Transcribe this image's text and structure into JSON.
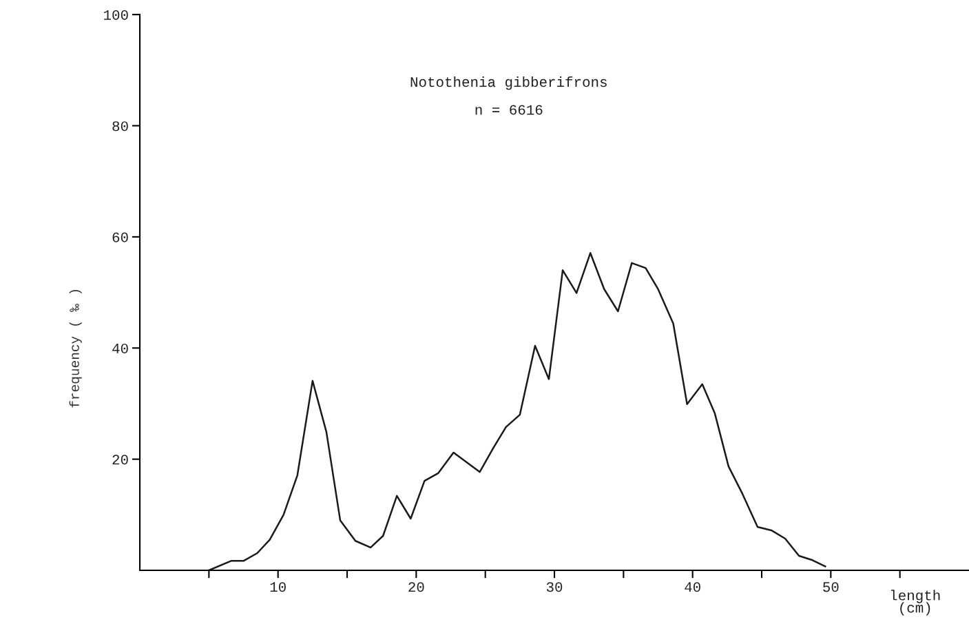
{
  "chart_data": {
    "type": "line",
    "xlabel": "length\n(cm)",
    "ylabel": "frequency ( ‰ )",
    "annotations": [
      "Notothenia gibberifrons",
      "n = 6616"
    ],
    "xlim": [
      0,
      60
    ],
    "ylim": [
      0,
      100
    ],
    "xticks": [
      {
        "value": 5,
        "label": null
      },
      10,
      {
        "value": 15,
        "label": null
      },
      20,
      {
        "value": 25,
        "label": null
      },
      30,
      {
        "value": 35,
        "label": null
      },
      40,
      {
        "value": 45,
        "label": null
      },
      50,
      {
        "value": 55,
        "label": null
      }
    ],
    "yticks": [
      20,
      40,
      60,
      80,
      100
    ],
    "grid": false,
    "legend": false,
    "marker": "none",
    "line_style": "solid",
    "series": [
      {
        "color": "#1a1a1a",
        "x": [
          5.0,
          6.6,
          7.5,
          8.5,
          9.4,
          10.4,
          11.4,
          12.5,
          13.5,
          14.5,
          15.6,
          16.7,
          17.6,
          18.6,
          19.6,
          20.6,
          21.6,
          22.7,
          24.6,
          25.6,
          26.5,
          27.5,
          28.6,
          29.6,
          30.6,
          31.6,
          32.6,
          33.6,
          34.6,
          35.6,
          36.6,
          37.5,
          38.6,
          39.6,
          40.7,
          41.6,
          42.6,
          43.6,
          44.7,
          45.7,
          46.7,
          47.7,
          48.6,
          49.6
        ],
        "values": [
          0,
          1.7,
          1.7,
          3.1,
          5.5,
          10.0,
          17.1,
          34.1,
          24.9,
          9.0,
          5.3,
          4.1,
          6.2,
          13.4,
          9.3,
          16.1,
          17.5,
          21.2,
          17.7,
          22.1,
          25.8,
          28.0,
          40.4,
          34.4,
          54.0,
          49.9,
          57.1,
          50.6,
          46.6,
          55.3,
          54.4,
          50.6,
          44.4,
          29.9,
          33.5,
          28.3,
          18.7,
          13.8,
          7.8,
          7.2,
          5.7,
          2.6,
          1.9,
          0.7
        ]
      }
    ]
  }
}
